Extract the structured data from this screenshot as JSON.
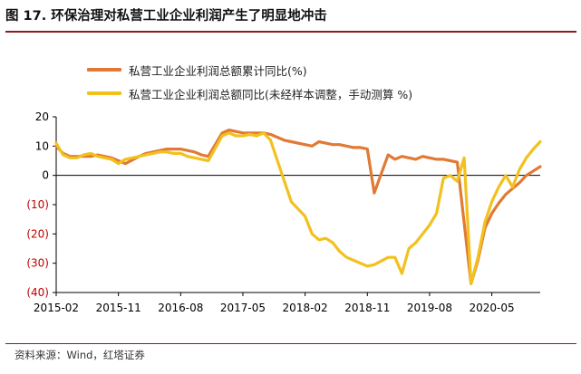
{
  "figure_title": "图 17. 环保治理对私营工业企业利润产生了明显地冲击",
  "source_note": "资料来源：Wind，红塔证券",
  "colors": {
    "cumulative": "#E07A35",
    "monthly": "#F2C11E",
    "axis": "#000000",
    "negative_tick": "#C00000",
    "title_rule": "#8a1c1c"
  },
  "chart_data": {
    "type": "line",
    "title": "",
    "xlabel": "",
    "ylabel": "",
    "ylim": [
      -40,
      20
    ],
    "y_ticks": [
      20,
      10,
      0,
      -10,
      -20,
      -30,
      -40
    ],
    "y_tick_labels": [
      "20",
      "10",
      "0",
      "(10)",
      "(20)",
      "(30)",
      "(40)"
    ],
    "x_tick_labels": [
      "2015-02",
      "2015-11",
      "2016-08",
      "2017-05",
      "2018-02",
      "2018-11",
      "2019-08",
      "2020-05"
    ],
    "x_range": [
      "2015-02",
      "2020-12"
    ],
    "grid": false,
    "legend_position": "top-left",
    "series": [
      {
        "name": "私营工业企业利润总额累计同比(%)",
        "color_key": "cumulative",
        "points": [
          [
            "2015-02",
            10
          ],
          [
            "2015-03",
            7.5
          ],
          [
            "2015-04",
            6.5
          ],
          [
            "2015-05",
            6.5
          ],
          [
            "2015-06",
            6.5
          ],
          [
            "2015-07",
            6.5
          ],
          [
            "2015-08",
            7
          ],
          [
            "2015-09",
            6.5
          ],
          [
            "2015-10",
            6
          ],
          [
            "2015-11",
            5
          ],
          [
            "2015-12",
            4
          ],
          [
            "2016-02",
            6.5
          ],
          [
            "2016-03",
            7.5
          ],
          [
            "2016-04",
            8
          ],
          [
            "2016-05",
            8.5
          ],
          [
            "2016-06",
            9
          ],
          [
            "2016-07",
            9
          ],
          [
            "2016-08",
            9
          ],
          [
            "2016-09",
            8.5
          ],
          [
            "2016-10",
            8
          ],
          [
            "2016-11",
            7
          ],
          [
            "2016-12",
            6.5
          ],
          [
            "2017-02",
            14.5
          ],
          [
            "2017-03",
            15.5
          ],
          [
            "2017-04",
            15
          ],
          [
            "2017-05",
            14.5
          ],
          [
            "2017-06",
            14.5
          ],
          [
            "2017-07",
            14.5
          ],
          [
            "2017-08",
            14.5
          ],
          [
            "2017-09",
            14
          ],
          [
            "2017-10",
            13
          ],
          [
            "2017-11",
            12
          ],
          [
            "2017-12",
            11.5
          ],
          [
            "2018-02",
            10.5
          ],
          [
            "2018-03",
            10
          ],
          [
            "2018-04",
            11.5
          ],
          [
            "2018-05",
            11
          ],
          [
            "2018-06",
            10.5
          ],
          [
            "2018-07",
            10.5
          ],
          [
            "2018-08",
            10
          ],
          [
            "2018-09",
            9.5
          ],
          [
            "2018-10",
            9.5
          ],
          [
            "2018-11",
            9
          ],
          [
            "2018-12",
            -6
          ],
          [
            "2019-02",
            7
          ],
          [
            "2019-03",
            5.5
          ],
          [
            "2019-04",
            6.5
          ],
          [
            "2019-05",
            6
          ],
          [
            "2019-06",
            5.5
          ],
          [
            "2019-07",
            6.5
          ],
          [
            "2019-08",
            6
          ],
          [
            "2019-09",
            5.5
          ],
          [
            "2019-10",
            5.5
          ],
          [
            "2019-11",
            5
          ],
          [
            "2019-12",
            4.5
          ],
          [
            "2020-02",
            -37
          ],
          [
            "2020-03",
            -29
          ],
          [
            "2020-04",
            -18
          ],
          [
            "2020-05",
            -13
          ],
          [
            "2020-06",
            -9.5
          ],
          [
            "2020-07",
            -6.5
          ],
          [
            "2020-08",
            -4.5
          ],
          [
            "2020-09",
            -2.5
          ],
          [
            "2020-10",
            0
          ],
          [
            "2020-11",
            1.5
          ],
          [
            "2020-12",
            3
          ]
        ]
      },
      {
        "name": "私营工业企业利润总额同比(未经样本调整，手动测算 %)",
        "color_key": "monthly",
        "points": [
          [
            "2015-02",
            11
          ],
          [
            "2015-03",
            7
          ],
          [
            "2015-04",
            6
          ],
          [
            "2015-05",
            6
          ],
          [
            "2015-06",
            7
          ],
          [
            "2015-07",
            7.5
          ],
          [
            "2015-08",
            6.5
          ],
          [
            "2015-09",
            6
          ],
          [
            "2015-10",
            5.5
          ],
          [
            "2015-11",
            4
          ],
          [
            "2015-12",
            5.5
          ],
          [
            "2016-02",
            6.5
          ],
          [
            "2016-03",
            7
          ],
          [
            "2016-04",
            7.5
          ],
          [
            "2016-05",
            8
          ],
          [
            "2016-06",
            8
          ],
          [
            "2016-07",
            7.5
          ],
          [
            "2016-08",
            7.5
          ],
          [
            "2016-09",
            6.5
          ],
          [
            "2016-10",
            6
          ],
          [
            "2016-11",
            5.5
          ],
          [
            "2016-12",
            5
          ],
          [
            "2017-02",
            13.5
          ],
          [
            "2017-03",
            14.5
          ],
          [
            "2017-04",
            13.5
          ],
          [
            "2017-05",
            13.5
          ],
          [
            "2017-06",
            14
          ],
          [
            "2017-07",
            13.5
          ],
          [
            "2017-08",
            14.5
          ],
          [
            "2017-09",
            12
          ],
          [
            "2017-10",
            5
          ],
          [
            "2017-11",
            -2
          ],
          [
            "2017-12",
            -9
          ],
          [
            "2018-02",
            -14
          ],
          [
            "2018-03",
            -20
          ],
          [
            "2018-04",
            -22
          ],
          [
            "2018-05",
            -21.5
          ],
          [
            "2018-06",
            -23
          ],
          [
            "2018-07",
            -26
          ],
          [
            "2018-08",
            -28
          ],
          [
            "2018-09",
            -29
          ],
          [
            "2018-10",
            -30
          ],
          [
            "2018-11",
            -31
          ],
          [
            "2018-12",
            -30.5
          ],
          [
            "2019-02",
            -28
          ],
          [
            "2019-03",
            -28
          ],
          [
            "2019-04",
            -33.5
          ],
          [
            "2019-05",
            -25
          ],
          [
            "2019-06",
            -23
          ],
          [
            "2019-07",
            -20
          ],
          [
            "2019-08",
            -17
          ],
          [
            "2019-09",
            -13
          ],
          [
            "2019-10",
            -1
          ],
          [
            "2019-11",
            0
          ],
          [
            "2019-12",
            -2
          ],
          [
            "2020-01",
            6
          ],
          [
            "2020-02",
            -37
          ],
          [
            "2020-03",
            -28
          ],
          [
            "2020-04",
            -16
          ],
          [
            "2020-05",
            -9
          ],
          [
            "2020-06",
            -4
          ],
          [
            "2020-07",
            0
          ],
          [
            "2020-08",
            -4
          ],
          [
            "2020-09",
            2
          ],
          [
            "2020-10",
            6
          ],
          [
            "2020-11",
            9
          ],
          [
            "2020-12",
            11.5
          ]
        ]
      }
    ]
  }
}
